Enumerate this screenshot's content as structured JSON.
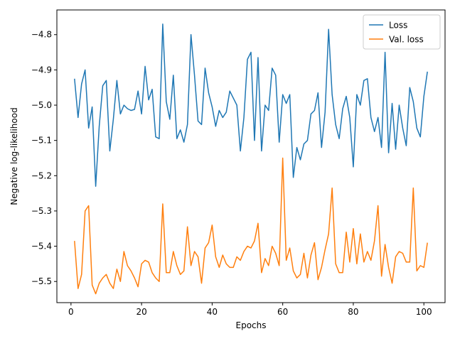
{
  "chart_data": {
    "type": "line",
    "title": "",
    "xlabel": "Epochs",
    "ylabel": "Negative log-likelihood",
    "xlim": [
      -4,
      106
    ],
    "ylim": [
      -5.56,
      -4.73
    ],
    "xticks": [
      0,
      20,
      40,
      60,
      80,
      100
    ],
    "yticks": [
      -4.8,
      -4.9,
      -5.0,
      -5.1,
      -5.2,
      -5.3,
      -5.4,
      -5.5
    ],
    "ytick_labels": [
      "−4.8",
      "−4.9",
      "−5.0",
      "−5.1",
      "−5.2",
      "−5.3",
      "−5.4",
      "−5.5"
    ],
    "grid": false,
    "legend_position": "top-right",
    "x": [
      1,
      2,
      3,
      4,
      5,
      6,
      7,
      8,
      9,
      10,
      11,
      12,
      13,
      14,
      15,
      16,
      17,
      18,
      19,
      20,
      21,
      22,
      23,
      24,
      25,
      26,
      27,
      28,
      29,
      30,
      31,
      32,
      33,
      34,
      35,
      36,
      37,
      38,
      39,
      40,
      41,
      42,
      43,
      44,
      45,
      46,
      47,
      48,
      49,
      50,
      51,
      52,
      53,
      54,
      55,
      56,
      57,
      58,
      59,
      60,
      61,
      62,
      63,
      64,
      65,
      66,
      67,
      68,
      69,
      70,
      71,
      72,
      73,
      74,
      75,
      76,
      77,
      78,
      79,
      80,
      81,
      82,
      83,
      84,
      85,
      86,
      87,
      88,
      89,
      90,
      91,
      92,
      93,
      94,
      95,
      96,
      97,
      98,
      99,
      100,
      101
    ],
    "series": [
      {
        "name": "Loss",
        "color": "#1f77b4",
        "values": [
          -4.925,
          -5.035,
          -4.94,
          -4.9,
          -5.065,
          -5.005,
          -5.23,
          -5.06,
          -4.945,
          -4.93,
          -5.13,
          -5.04,
          -4.93,
          -5.025,
          -5.0,
          -5.01,
          -5.015,
          -5.012,
          -4.96,
          -5.025,
          -4.89,
          -4.985,
          -4.955,
          -5.09,
          -5.095,
          -4.77,
          -4.99,
          -5.04,
          -4.915,
          -5.095,
          -5.07,
          -5.105,
          -5.055,
          -4.8,
          -4.915,
          -5.045,
          -5.055,
          -4.895,
          -4.965,
          -5.005,
          -5.06,
          -5.015,
          -5.035,
          -5.02,
          -4.96,
          -4.98,
          -5.0,
          -5.13,
          -5.035,
          -4.87,
          -4.85,
          -5.1,
          -4.865,
          -5.13,
          -5.0,
          -5.015,
          -4.895,
          -4.915,
          -5.105,
          -4.97,
          -4.995,
          -4.97,
          -5.205,
          -5.12,
          -5.155,
          -5.11,
          -5.1,
          -5.025,
          -5.015,
          -4.965,
          -5.12,
          -5.02,
          -4.785,
          -4.97,
          -5.055,
          -5.095,
          -5.01,
          -4.975,
          -5.035,
          -5.175,
          -4.97,
          -5.0,
          -4.93,
          -4.925,
          -5.035,
          -5.075,
          -5.035,
          -5.12,
          -4.85,
          -5.135,
          -4.995,
          -5.125,
          -5.0,
          -5.065,
          -5.115,
          -4.95,
          -4.99,
          -5.065,
          -5.09,
          -4.975,
          -4.905
        ]
      },
      {
        "name": "Val. loss",
        "color": "#ff7f0e",
        "values": [
          -5.385,
          -5.52,
          -5.48,
          -5.3,
          -5.285,
          -5.51,
          -5.535,
          -5.505,
          -5.49,
          -5.48,
          -5.505,
          -5.52,
          -5.465,
          -5.5,
          -5.415,
          -5.455,
          -5.47,
          -5.49,
          -5.515,
          -5.45,
          -5.44,
          -5.445,
          -5.475,
          -5.49,
          -5.5,
          -5.28,
          -5.475,
          -5.475,
          -5.415,
          -5.455,
          -5.48,
          -5.47,
          -5.345,
          -5.455,
          -5.415,
          -5.43,
          -5.505,
          -5.405,
          -5.39,
          -5.34,
          -5.43,
          -5.46,
          -5.425,
          -5.45,
          -5.46,
          -5.46,
          -5.43,
          -5.44,
          -5.415,
          -5.4,
          -5.405,
          -5.385,
          -5.335,
          -5.475,
          -5.435,
          -5.455,
          -5.4,
          -5.42,
          -5.455,
          -5.15,
          -5.44,
          -5.405,
          -5.47,
          -5.49,
          -5.48,
          -5.42,
          -5.49,
          -5.425,
          -5.39,
          -5.495,
          -5.46,
          -5.41,
          -5.365,
          -5.235,
          -5.45,
          -5.475,
          -5.475,
          -5.36,
          -5.445,
          -5.35,
          -5.45,
          -5.365,
          -5.445,
          -5.415,
          -5.44,
          -5.385,
          -5.285,
          -5.485,
          -5.395,
          -5.46,
          -5.505,
          -5.43,
          -5.415,
          -5.42,
          -5.445,
          -5.445,
          -5.235,
          -5.47,
          -5.455,
          -5.46,
          -5.39
        ]
      }
    ]
  }
}
